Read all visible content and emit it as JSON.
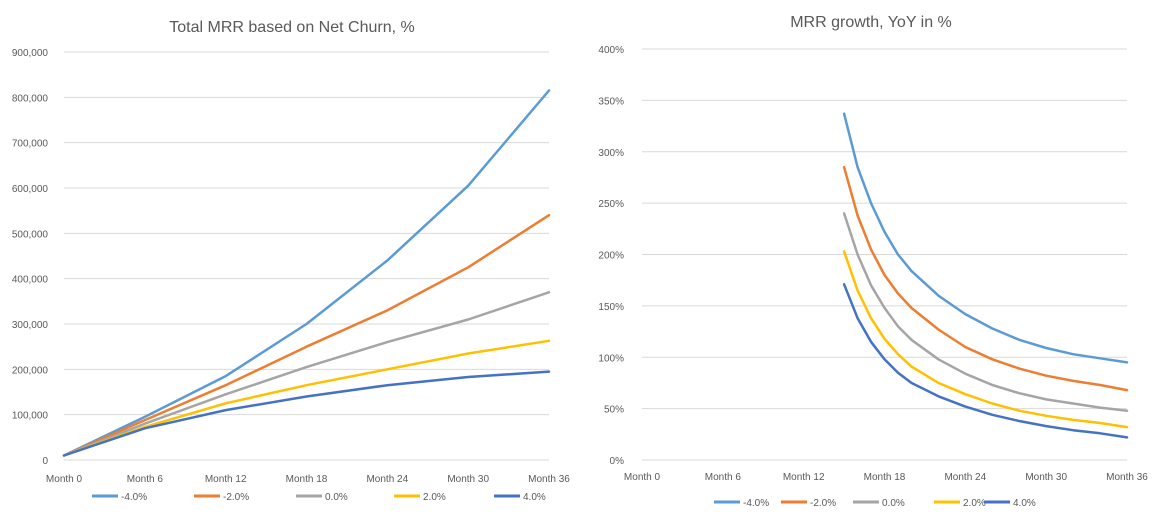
{
  "chart_data": [
    {
      "type": "line",
      "title": "Total MRR based on Net Churn, %",
      "xlabel": "",
      "ylabel": "",
      "x_tick_labels": [
        "Month 0",
        "Month 6",
        "Month 12",
        "Month 18",
        "Month 24",
        "Month 30",
        "Month 36"
      ],
      "y_tick_labels": [
        "0",
        "100,000",
        "200,000",
        "300,000",
        "400,000",
        "500,000",
        "600,000",
        "700,000",
        "800,000",
        "900,000"
      ],
      "xlim": [
        0,
        36
      ],
      "ylim": [
        0,
        900000
      ],
      "grid": "horizontal",
      "legend_position": "bottom",
      "x": [
        0,
        6,
        12,
        18,
        24,
        30,
        36
      ],
      "series": [
        {
          "name": "-4.0%",
          "color": "#5b9bd5",
          "values": [
            10000,
            95000,
            185000,
            300000,
            440000,
            605000,
            815000
          ]
        },
        {
          "name": "-2.0%",
          "color": "#ed7d31",
          "values": [
            10000,
            88000,
            165000,
            250000,
            330000,
            425000,
            540000
          ]
        },
        {
          "name": "0.0%",
          "color": "#a5a5a5",
          "values": [
            10000,
            80000,
            145000,
            205000,
            260000,
            310000,
            370000
          ]
        },
        {
          "name": "2.0%",
          "color": "#ffc000",
          "values": [
            10000,
            73000,
            125000,
            165000,
            200000,
            235000,
            263000
          ]
        },
        {
          "name": "4.0%",
          "color": "#4472c4",
          "values": [
            10000,
            70000,
            110000,
            140000,
            165000,
            183000,
            195000
          ]
        }
      ]
    },
    {
      "type": "line",
      "title": "MRR growth, YoY in %",
      "xlabel": "",
      "ylabel": "",
      "x_tick_labels": [
        "Month 0",
        "Month 6",
        "Month 12",
        "Month 18",
        "Month 24",
        "Month 30",
        "Month 36"
      ],
      "y_tick_labels": [
        "0%",
        "50%",
        "100%",
        "150%",
        "200%",
        "250%",
        "300%",
        "350%",
        "400%"
      ],
      "xlim": [
        0,
        36
      ],
      "ylim": [
        0,
        400
      ],
      "grid": "horizontal",
      "legend_position": "bottom",
      "x": [
        15,
        16,
        17,
        18,
        19,
        20,
        22,
        24,
        26,
        28,
        30,
        32,
        34,
        36
      ],
      "series": [
        {
          "name": "-4.0%",
          "color": "#5b9bd5",
          "values": [
            337,
            285,
            250,
            222,
            200,
            184,
            160,
            142,
            128,
            117,
            109,
            103,
            99,
            95
          ]
        },
        {
          "name": "-2.0%",
          "color": "#ed7d31",
          "values": [
            285,
            238,
            205,
            180,
            162,
            148,
            127,
            110,
            98,
            89,
            82,
            77,
            73,
            68
          ]
        },
        {
          "name": "0.0%",
          "color": "#a5a5a5",
          "values": [
            240,
            200,
            170,
            148,
            130,
            117,
            98,
            84,
            73,
            65,
            59,
            55,
            51,
            48
          ]
        },
        {
          "name": "2.0%",
          "color": "#ffc000",
          "values": [
            203,
            165,
            138,
            118,
            103,
            91,
            75,
            64,
            55,
            48,
            43,
            39,
            36,
            32
          ]
        },
        {
          "name": "4.0%",
          "color": "#4472c4",
          "values": [
            171,
            138,
            115,
            98,
            85,
            75,
            62,
            52,
            44,
            38,
            33,
            29,
            26,
            22
          ]
        }
      ]
    }
  ]
}
